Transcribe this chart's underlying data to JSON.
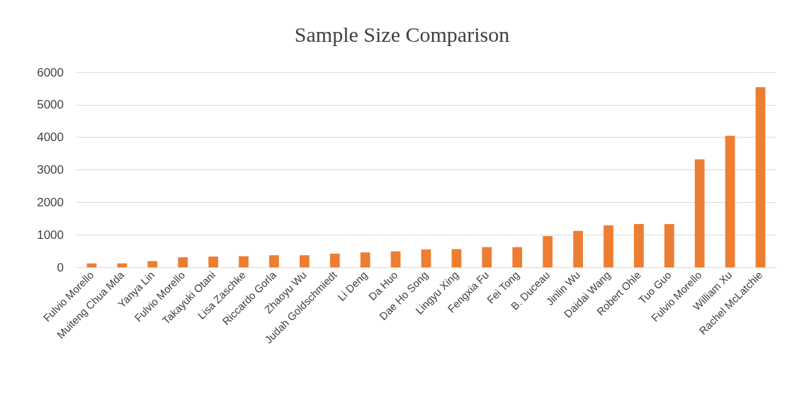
{
  "chart_data": {
    "type": "bar",
    "title": "Sample Size Comparison",
    "categories": [
      "Fulvio Morello",
      "Muiteng Chua Mda",
      "Yanya Lin",
      "Fulvio Morello",
      "Takayuki Otani",
      "Lisa Zaschke",
      "Riccardo Gorla",
      "Zhaoyu Wu",
      "Judah Goldschmiedt",
      "Li Deng",
      "Da Huo",
      "Dae Ho Song",
      "Lingyu Xing",
      "Fengxia Fu",
      "Fei Tong",
      "B. Duceau",
      "Jinlin Wu",
      "Daidai Wang",
      "Robert Ohle",
      "Tuo Guo",
      "Fulvio Morello",
      "William Xu",
      "Rachel McLatchie"
    ],
    "values": [
      120,
      120,
      190,
      310,
      330,
      340,
      370,
      370,
      420,
      460,
      490,
      550,
      560,
      620,
      620,
      960,
      1120,
      1290,
      1330,
      1330,
      3320,
      4050,
      5540
    ],
    "color": "#ed7d31",
    "ylim": [
      0,
      6000
    ],
    "yticks": [
      0,
      1000,
      2000,
      3000,
      4000,
      5000,
      6000
    ],
    "grid": "y"
  }
}
